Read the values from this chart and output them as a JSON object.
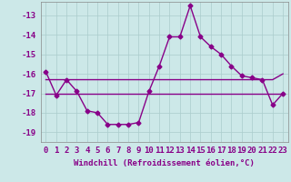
{
  "xlabel": "Windchill (Refroidissement éolien,°C)",
  "x": [
    0,
    1,
    2,
    3,
    4,
    5,
    6,
    7,
    8,
    9,
    10,
    11,
    12,
    13,
    14,
    15,
    16,
    17,
    18,
    19,
    20,
    21,
    22,
    23
  ],
  "y_main": [
    -15.9,
    -17.1,
    -16.3,
    -16.9,
    -17.9,
    -18.0,
    -18.6,
    -18.6,
    -18.6,
    -18.5,
    -16.9,
    -15.6,
    -14.1,
    -14.1,
    -12.5,
    -14.1,
    -14.6,
    -15.0,
    -15.6,
    -16.1,
    -16.2,
    -16.3,
    -17.6,
    -17.0
  ],
  "y_line1": [
    -16.3,
    -16.3,
    -16.3,
    -16.3,
    -16.3,
    -16.3,
    -16.3,
    -16.3,
    -16.3,
    -16.3,
    -16.3,
    -16.3,
    -16.3,
    -16.3,
    -16.3,
    -16.3,
    -16.3,
    -16.3,
    -16.3,
    -16.3,
    -16.3,
    -16.3,
    -16.3,
    -16.0
  ],
  "y_line2": [
    -17.0,
    -17.0,
    -17.0,
    -17.0,
    -17.0,
    -17.0,
    -17.0,
    -17.0,
    -17.0,
    -17.0,
    -17.0,
    -17.0,
    -17.0,
    -17.0,
    -17.0,
    -17.0,
    -17.0,
    -17.0,
    -17.0,
    -17.0,
    -17.0,
    -17.0,
    -17.0,
    -17.0
  ],
  "line_color": "#880088",
  "bg_color": "#cce8e8",
  "grid_color": "#aacccc",
  "ylim": [
    -19.5,
    -12.3
  ],
  "yticks": [
    -19,
    -18,
    -17,
    -16,
    -15,
    -14,
    -13
  ],
  "marker": "D",
  "marker_size": 2.5,
  "line_width": 1.0,
  "tick_fontsize": 6.5,
  "xlabel_fontsize": 6.5
}
